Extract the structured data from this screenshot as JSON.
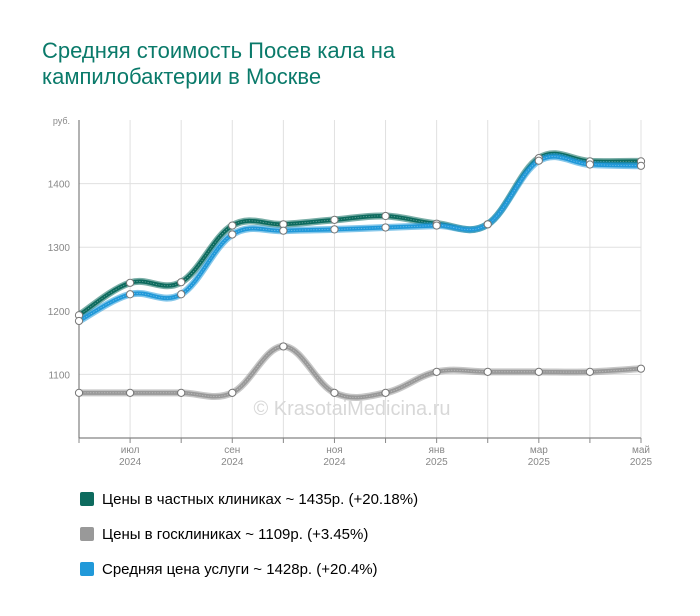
{
  "title": "Средняя стоимость Посев кала на\nкампилобактерии в Москве",
  "watermark": "© KrasotaiMedicina.ru",
  "chart_data": {
    "type": "line",
    "yunit": "руб.",
    "ylim": [
      1000,
      1500
    ],
    "yticks": [
      1100,
      1200,
      1300,
      1400
    ],
    "grid": true,
    "x": [
      "2024-06",
      "2024-07",
      "2024-08",
      "2024-09",
      "2024-10",
      "2024-11",
      "2024-12",
      "2025-01",
      "2025-02",
      "2025-03",
      "2025-04",
      "2025-05"
    ],
    "xtick_labels": [
      {
        "index": 1,
        "month": "июл",
        "year": "2024"
      },
      {
        "index": 3,
        "month": "сен",
        "year": "2024"
      },
      {
        "index": 5,
        "month": "ноя",
        "year": "2024"
      },
      {
        "index": 7,
        "month": "янв",
        "year": "2025"
      },
      {
        "index": 9,
        "month": "мар",
        "year": "2025"
      },
      {
        "index": 11,
        "month": "май",
        "year": "2025"
      }
    ],
    "series": [
      {
        "key": "private",
        "color": "#0d6b5e",
        "values": [
          1193,
          1244,
          1245,
          1334,
          1336,
          1343,
          1349,
          1337,
          1336,
          1440,
          1435,
          1435
        ]
      },
      {
        "key": "state",
        "color": "#999999",
        "values": [
          1071,
          1071,
          1071,
          1071,
          1144,
          1071,
          1071,
          1104,
          1104,
          1104,
          1104,
          1109
        ]
      },
      {
        "key": "average",
        "color": "#2199d9",
        "values": [
          1184,
          1226,
          1226,
          1320,
          1326,
          1328,
          1331,
          1334,
          1336,
          1436,
          1430,
          1428
        ]
      }
    ],
    "legend": [
      {
        "color": "#0d6b5e",
        "label": "Цены в частных клиниках ~ 1435р. (+20.18%)"
      },
      {
        "color": "#999999",
        "label": "Цены в госклиниках ~ 1109р. (+3.45%)"
      },
      {
        "color": "#2199d9",
        "label": "Средняя цена услуги ~ 1428р. (+20.4%)"
      }
    ]
  }
}
